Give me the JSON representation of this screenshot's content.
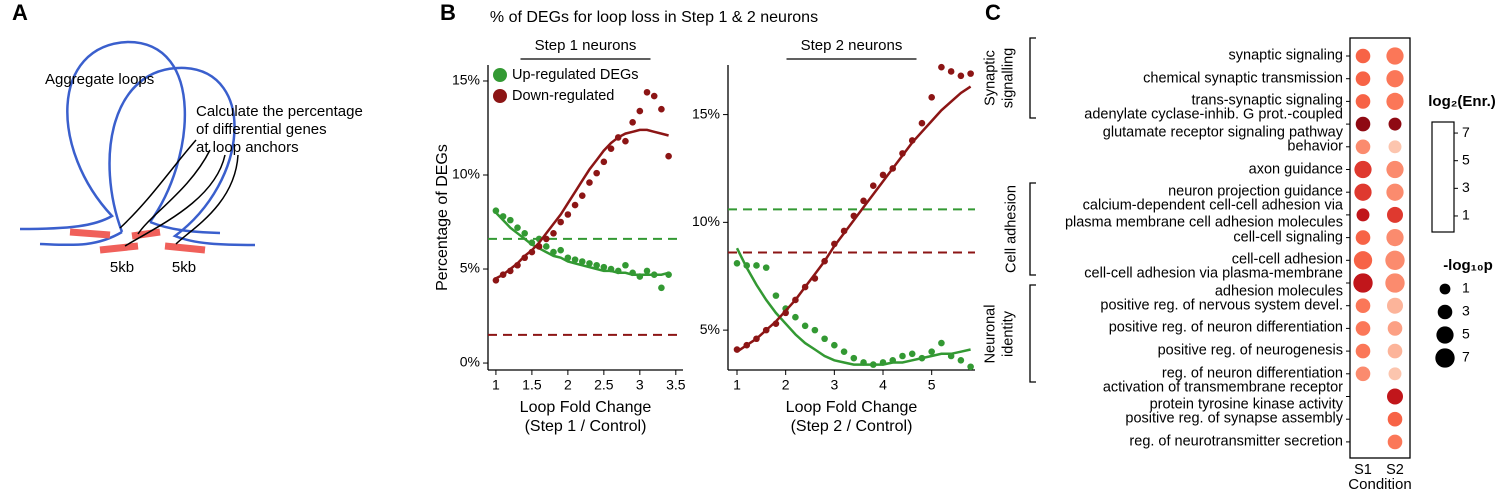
{
  "panel_labels": [
    "A",
    "B",
    "C"
  ],
  "panel_a": {
    "loops_label": "Aggregate loops",
    "annotation": "Calculate the percentage\nof differential genes\nat loop anchors",
    "anchor_labels": [
      "5kb",
      "5kb"
    ]
  },
  "figure_title": "% of DEGs for loop loss in Step 1 & 2 neurons",
  "chart_data": [
    {
      "type": "scatter",
      "subtitle": "Step 1 neurons",
      "y_label": "Percentage of DEGs",
      "x_label": "Loop Fold Change\n(Step 1 / Control)",
      "x": [
        1.0,
        1.1,
        1.2,
        1.3,
        1.4,
        1.5,
        1.6,
        1.7,
        1.8,
        1.9,
        2.0,
        2.1,
        2.2,
        2.3,
        2.4,
        2.5,
        2.6,
        2.7,
        2.8,
        2.9,
        3.0,
        3.1,
        3.2,
        3.3,
        3.4
      ],
      "series": [
        {
          "name": "Up-regulated DEGs",
          "color": "#339933",
          "values": [
            8.1,
            7.8,
            7.6,
            7.2,
            6.9,
            6.4,
            6.6,
            6.2,
            5.9,
            6.0,
            5.6,
            5.5,
            5.4,
            5.3,
            5.2,
            5.1,
            5.0,
            4.9,
            5.2,
            4.8,
            4.6,
            4.9,
            4.7,
            4.0,
            4.7
          ],
          "fit": [
            8.0,
            7.6,
            7.2,
            6.9,
            6.6,
            6.3,
            6.1,
            5.9,
            5.7,
            5.6,
            5.4,
            5.3,
            5.2,
            5.1,
            5.0,
            4.9,
            4.9,
            4.8,
            4.8,
            4.7,
            4.7,
            4.7,
            4.7,
            4.7,
            4.8
          ],
          "reference": 6.6
        },
        {
          "name": "Down-regulated",
          "color": "#8c1515",
          "values": [
            4.4,
            4.7,
            4.9,
            5.2,
            5.6,
            5.9,
            6.2,
            6.6,
            6.9,
            7.5,
            7.9,
            8.4,
            8.9,
            9.6,
            10.1,
            10.7,
            11.4,
            12.0,
            11.8,
            12.8,
            13.4,
            14.4,
            14.2,
            13.5,
            11.0
          ],
          "fit": [
            4.5,
            4.7,
            5.0,
            5.3,
            5.7,
            6.0,
            6.4,
            6.9,
            7.4,
            7.9,
            8.5,
            9.1,
            9.7,
            10.3,
            10.8,
            11.3,
            11.7,
            12.0,
            12.2,
            12.3,
            12.4,
            12.4,
            12.3,
            12.2,
            12.1
          ],
          "reference": 1.5
        }
      ],
      "xlim": [
        0.89,
        3.6
      ],
      "ylim": [
        -0.37,
        15.85
      ],
      "xticks": [
        1,
        1.5,
        2,
        2.5,
        3,
        3.5
      ],
      "yticks": [
        {
          "value": 0,
          "label": "0%"
        },
        {
          "value": 5,
          "label": "5%"
        },
        {
          "value": 10,
          "label": "10%"
        },
        {
          "value": 15,
          "label": "15%"
        }
      ],
      "legend": "upper left"
    },
    {
      "type": "scatter",
      "subtitle": "Step 2 neurons",
      "x_label": "Loop Fold Change\n(Step 2 / Control)",
      "x": [
        1.0,
        1.2,
        1.4,
        1.6,
        1.8,
        2.0,
        2.2,
        2.4,
        2.6,
        2.8,
        3.0,
        3.2,
        3.4,
        3.6,
        3.8,
        4.0,
        4.2,
        4.4,
        4.6,
        4.8,
        5.0,
        5.2,
        5.4,
        5.6,
        5.8
      ],
      "series": [
        {
          "name": "Up-regulated DEGs",
          "color": "#339933",
          "values": [
            8.1,
            8.0,
            8.0,
            7.9,
            6.6,
            6.0,
            5.6,
            5.2,
            5.0,
            4.6,
            4.3,
            4.0,
            3.7,
            3.5,
            3.4,
            3.5,
            3.6,
            3.8,
            3.9,
            3.7,
            4.0,
            4.4,
            3.8,
            3.6,
            3.3
          ],
          "fit": [
            8.8,
            7.9,
            7.1,
            6.4,
            5.8,
            5.3,
            4.8,
            4.4,
            4.1,
            3.8,
            3.6,
            3.5,
            3.4,
            3.4,
            3.4,
            3.4,
            3.5,
            3.5,
            3.6,
            3.7,
            3.8,
            3.9,
            3.9,
            4.0,
            4.1
          ],
          "reference": 10.6
        },
        {
          "name": "Down-regulated",
          "color": "#8c1515",
          "values": [
            4.1,
            4.3,
            4.6,
            5.0,
            5.3,
            5.8,
            6.4,
            7.0,
            7.4,
            8.2,
            9.0,
            9.6,
            10.3,
            11.0,
            11.7,
            12.2,
            12.5,
            13.2,
            13.8,
            14.6,
            15.8,
            17.2,
            17.0,
            16.8,
            16.9
          ],
          "fit": [
            4.0,
            4.3,
            4.6,
            5.0,
            5.4,
            5.9,
            6.4,
            7.0,
            7.6,
            8.2,
            8.9,
            9.5,
            10.1,
            10.7,
            11.3,
            11.9,
            12.5,
            13.1,
            13.7,
            14.2,
            14.7,
            15.2,
            15.6,
            16.0,
            16.3
          ],
          "reference": 8.6
        }
      ],
      "xlim": [
        0.815,
        5.89
      ],
      "ylim": [
        3.15,
        17.3
      ],
      "xticks": [
        1,
        2,
        3,
        4,
        5
      ],
      "yticks": [
        {
          "value": 5,
          "label": "5%"
        },
        {
          "value": 10,
          "label": "10%"
        },
        {
          "value": 15,
          "label": "15%"
        }
      ]
    },
    {
      "type": "dot_matrix",
      "x_label": "Condition",
      "categories": [
        "synaptic signaling",
        "chemical synaptic transmission",
        "trans-synaptic signaling",
        "adenylate cyclase-inhib. G prot.-coupled\nglutamate receptor signaling pathway",
        "behavior",
        "axon guidance",
        "neuron projection guidance",
        "calcium-dependent cell-cell adhesion via\nplasma membrane cell adhesion molecules",
        "cell-cell signaling",
        "cell-cell adhesion",
        "cell-cell adhesion via plasma-membrane\nadhesion molecules",
        "positive reg. of nervous system devel.",
        "positive reg. of neuron differentiation",
        "positive reg. of neurogenesis",
        "reg. of neuron differentiation",
        "activation of transmembrane receptor\nprotein tyrosine kinase activity",
        "positive reg. of synapse assembly",
        "reg. of neurotransmitter secretion"
      ],
      "series": [
        {
          "name": "S1",
          "enrichment": [
            4,
            4,
            4,
            7,
            3,
            5,
            5,
            6,
            4,
            4,
            6,
            3.5,
            3.5,
            3.5,
            3,
            null,
            null,
            null
          ],
          "neg_log10_p": [
            3,
            3,
            3,
            3,
            3,
            5,
            5,
            2,
            3,
            6,
            7,
            3,
            3,
            3,
            3,
            null,
            null,
            null
          ]
        },
        {
          "name": "S2",
          "enrichment": [
            3.5,
            3.5,
            3.5,
            7,
            1.5,
            3,
            3,
            5,
            3,
            3,
            3,
            2,
            2.5,
            2,
            1.5,
            6,
            4,
            3.5
          ],
          "neg_log10_p": [
            5,
            5,
            5,
            2,
            2,
            5,
            5,
            4,
            5,
            7,
            7,
            4,
            3,
            3,
            2,
            4,
            3,
            3
          ]
        }
      ],
      "groups": [
        "Synaptic\nsignalling",
        "Cell adhesion",
        "Neuronal\nidentity"
      ],
      "color_legend_title": "log₂(Enr.)",
      "color_lim": [
        -0.16,
        7.8
      ],
      "color_ticks": [
        1,
        3,
        5,
        7
      ],
      "colormap": [
        "#fff5f0",
        "#fcbba1",
        "#fb6a4a",
        "#cb181d",
        "#67000d"
      ],
      "size_legend_title": "-log₁₀p",
      "size_ticks": [
        1,
        3,
        5,
        7
      ]
    }
  ]
}
